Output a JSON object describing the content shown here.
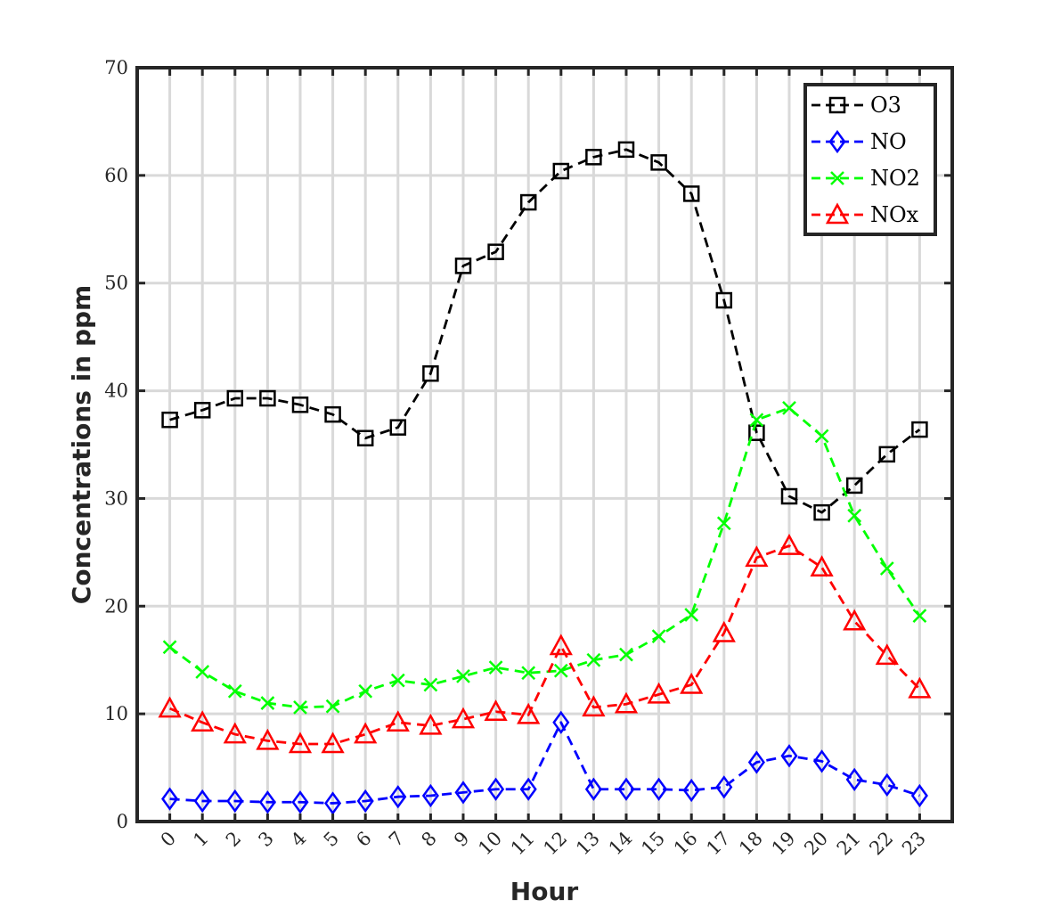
{
  "chart_data": {
    "type": "line",
    "title": "",
    "xlabel": "Hour",
    "ylabel": "Concentrations in ppm",
    "x": [
      0,
      1,
      2,
      3,
      4,
      5,
      6,
      7,
      8,
      9,
      10,
      11,
      12,
      13,
      14,
      15,
      16,
      17,
      18,
      19,
      20,
      21,
      22,
      23
    ],
    "x_tick_labels": [
      "0",
      "1",
      "2",
      "3",
      "4",
      "5",
      "6",
      "7",
      "8",
      "9",
      "10",
      "11",
      "12",
      "13",
      "14",
      "15",
      "16",
      "17",
      "18",
      "19",
      "20",
      "21",
      "22",
      "23"
    ],
    "xlim": [
      -1,
      24
    ],
    "ylim": [
      0,
      70
    ],
    "y_ticks": [
      0,
      10,
      20,
      30,
      40,
      50,
      60,
      70
    ],
    "y_tick_labels": [
      "0",
      "10",
      "20",
      "30",
      "40",
      "50",
      "60",
      "70"
    ],
    "grid": true,
    "legend_position": "top-right",
    "series": [
      {
        "name": "O3",
        "color": "#000000",
        "marker": "square",
        "line_style": "dashed",
        "values": [
          37.3,
          38.2,
          39.3,
          39.3,
          38.7,
          37.8,
          35.6,
          36.6,
          41.6,
          51.6,
          52.9,
          57.5,
          60.4,
          61.7,
          62.4,
          61.2,
          58.3,
          48.4,
          36.1,
          30.2,
          28.7,
          31.2,
          34.1,
          36.4
        ]
      },
      {
        "name": "NO",
        "color": "#0000ff",
        "marker": "diamond",
        "line_style": "dashed",
        "values": [
          2.1,
          1.9,
          1.9,
          1.8,
          1.8,
          1.7,
          1.9,
          2.3,
          2.4,
          2.7,
          3.0,
          3.0,
          9.2,
          3.0,
          3.0,
          3.0,
          2.9,
          3.2,
          5.5,
          6.1,
          5.6,
          3.9,
          3.4,
          2.4
        ]
      },
      {
        "name": "NO2",
        "color": "#00ff00",
        "marker": "x",
        "line_style": "dashed",
        "values": [
          16.2,
          13.9,
          12.1,
          11.0,
          10.6,
          10.7,
          12.1,
          13.1,
          12.7,
          13.5,
          14.3,
          13.8,
          14.0,
          15.0,
          15.5,
          17.2,
          19.2,
          27.7,
          37.3,
          38.4,
          35.8,
          28.4,
          23.5,
          19.1
        ]
      },
      {
        "name": "NOx",
        "color": "#ff0000",
        "marker": "triangle",
        "line_style": "dashed",
        "values": [
          10.5,
          9.2,
          8.1,
          7.5,
          7.2,
          7.2,
          8.1,
          9.2,
          8.9,
          9.5,
          10.2,
          9.9,
          16.3,
          10.6,
          10.9,
          11.8,
          12.7,
          17.5,
          24.5,
          25.6,
          23.6,
          18.6,
          15.4,
          12.3
        ]
      }
    ]
  }
}
